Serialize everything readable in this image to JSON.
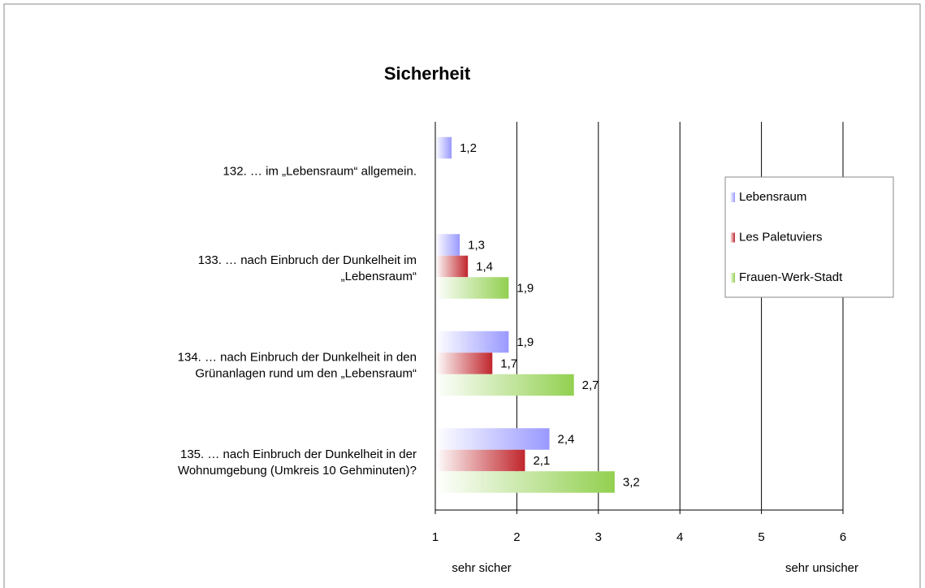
{
  "chart_data": {
    "type": "hbar",
    "title": "Sicherheit",
    "categories": [
      [
        "132. … im „Lebensraum“ allgemein."
      ],
      [
        "133. … nach Einbruch der Dunkelheit im",
        "„Lebensraum“"
      ],
      [
        "134. … nach Einbruch der Dunkelheit in den",
        "Grünanlagen rund um den „Lebensraum“"
      ],
      [
        "135. … nach Einbruch der Dunkelheit in der",
        "Wohnumgebung (Umkreis 10 Gehminuten)?"
      ]
    ],
    "series": [
      {
        "name": "Lebensraum",
        "color": "#9999ff",
        "values": [
          1.2,
          1.3,
          1.9,
          2.4
        ],
        "value_labels": [
          "1,2",
          "1,3",
          "1,9",
          "2,4"
        ]
      },
      {
        "name": "Les Paletuviers",
        "color": "#c0262c",
        "values": [
          null,
          1.4,
          1.7,
          2.1
        ],
        "value_labels": [
          null,
          "1,4",
          "1,7",
          "2,1"
        ]
      },
      {
        "name": "Frauen-Werk-Stadt",
        "color": "#92d050",
        "values": [
          null,
          1.9,
          2.7,
          3.2
        ],
        "value_labels": [
          null,
          "1,9",
          "2,7",
          "3,2"
        ]
      }
    ],
    "xlim": [
      1,
      6
    ],
    "xticks": [
      1,
      2,
      3,
      4,
      5,
      6
    ],
    "grid": true,
    "x_axis_annotations": [
      "sehr sicher",
      "sehr unsicher"
    ],
    "legend": "right"
  }
}
